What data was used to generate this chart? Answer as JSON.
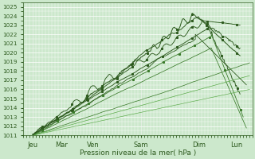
{
  "title": "",
  "xlabel": "Pression niveau de la mer( hPa )",
  "ylabel": "",
  "ylim": [
    1011,
    1025.5
  ],
  "xlim": [
    0,
    7.2
  ],
  "day_labels": [
    "Jeu",
    "Mar",
    "Ven",
    "Sam",
    "Dim",
    "Lun"
  ],
  "day_positions": [
    0.3,
    1.2,
    2.2,
    3.7,
    5.5,
    6.7
  ],
  "bg_color": "#cce8cc",
  "grid_color": "#ffffff",
  "line_color_dark": "#2d5a1e",
  "line_color_mid": "#3a7a2a",
  "line_color_light": "#5aaa48",
  "yticks": [
    1011,
    1012,
    1013,
    1014,
    1015,
    1016,
    1017,
    1018,
    1019,
    1020,
    1021,
    1022,
    1023,
    1024,
    1025
  ]
}
